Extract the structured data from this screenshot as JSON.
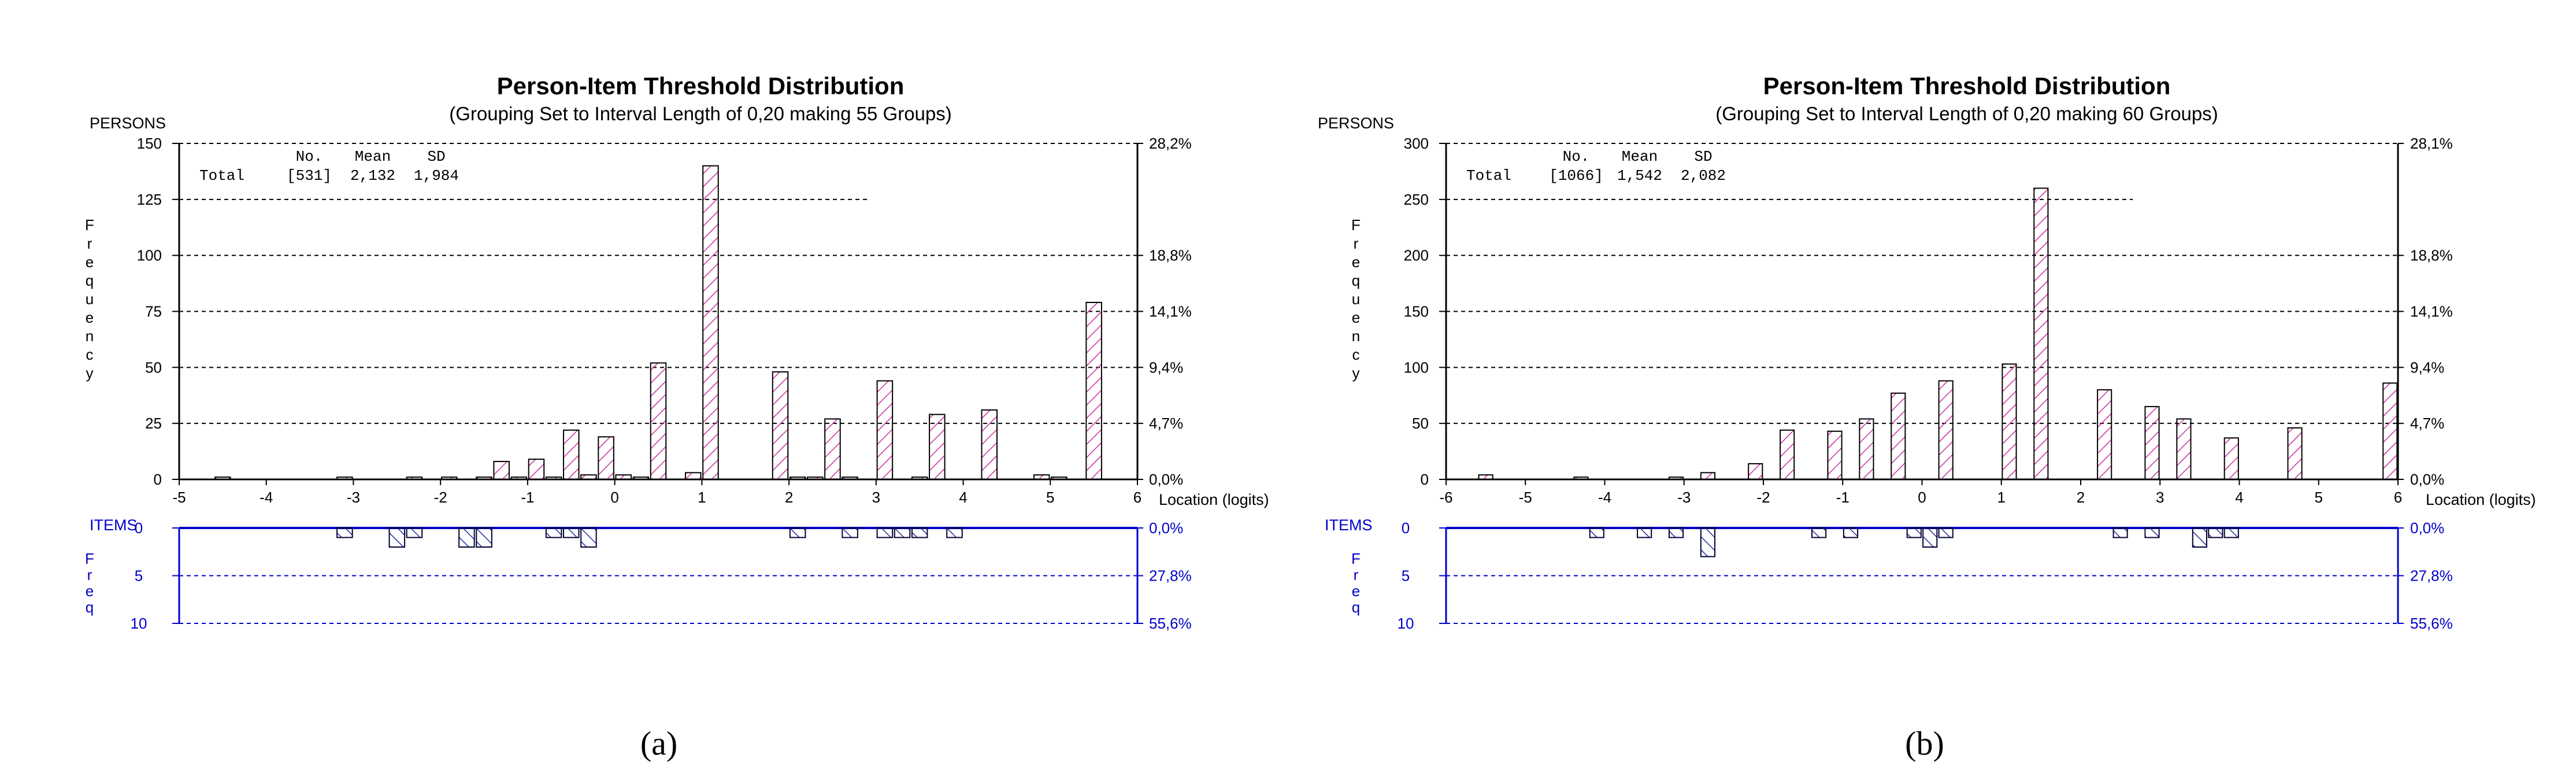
{
  "figure_labels": [
    "(a)",
    "(b)"
  ],
  "style": {
    "person_color": "#cc2f9f",
    "item_color": "#1f2f9f",
    "axis_black": "#000000",
    "axis_blue": "#0000cc"
  },
  "chart_data": [
    {
      "type": "bar",
      "title": "Person-Item Threshold Distribution",
      "subtitle": "(Grouping Set to Interval Length of  0,20  making  55  Groups)",
      "persons_label": "PERSONS",
      "items_label": "ITEMS",
      "freq_label_persons": [
        "F",
        "r",
        "e",
        "q",
        "u",
        "e",
        "n",
        "c",
        "y"
      ],
      "freq_label_items": [
        "F",
        "r",
        "e",
        "q"
      ],
      "xlabel": "Location (logits)",
      "xlim": [
        -5,
        6
      ],
      "x_ticks": [
        "-5",
        "-4",
        "-3",
        "-2",
        "-1",
        "0",
        "1",
        "2",
        "3",
        "4",
        "5",
        "6"
      ],
      "ylim_persons": [
        0,
        150
      ],
      "y_ticks_persons": [
        "0",
        "25",
        "50",
        "75",
        "100",
        "125",
        "150"
      ],
      "right_ticks_persons": [
        "0,0%",
        "4,7%",
        "9,4%",
        "14,1%",
        "18,8%",
        "28,2%"
      ],
      "ylim_items": [
        0,
        10
      ],
      "y_ticks_items": [
        "0",
        "5",
        "10"
      ],
      "right_ticks_items": [
        "0,0%",
        "27,8%",
        "55,6%"
      ],
      "stats": {
        "headers": [
          "No.",
          "Mean",
          "SD"
        ],
        "label": "Total",
        "values": [
          "[531]",
          "2,132",
          "1,984"
        ]
      },
      "persons": {
        "x": [
          -4.5,
          -3.1,
          -2.3,
          -1.9,
          -1.5,
          -1.3,
          -1.1,
          -0.9,
          -0.7,
          -0.5,
          -0.3,
          -0.1,
          0.1,
          0.3,
          0.5,
          0.9,
          1.1,
          1.9,
          2.1,
          2.3,
          2.5,
          2.7,
          3.1,
          3.5,
          3.7,
          4.3,
          4.9,
          5.1,
          5.5
        ],
        "values": [
          1,
          1,
          1,
          1,
          1,
          8,
          1,
          9,
          1,
          22,
          2,
          19,
          2,
          1,
          52,
          3,
          140,
          48,
          1,
          1,
          27,
          1,
          44,
          1,
          29,
          31,
          2,
          1,
          79
        ]
      },
      "items": {
        "x": [
          -3.1,
          -2.5,
          -2.3,
          -1.7,
          -1.5,
          -0.7,
          -0.5,
          -0.3,
          2.1,
          2.7,
          3.1,
          3.3,
          3.5,
          3.9
        ],
        "values": [
          1,
          2,
          1,
          2,
          2,
          1,
          1,
          2,
          1,
          1,
          1,
          1,
          1,
          1
        ]
      }
    },
    {
      "type": "bar",
      "title": "Person-Item Threshold Distribution",
      "subtitle": "(Grouping Set to Interval Length of  0,20  making  60  Groups)",
      "persons_label": "PERSONS",
      "items_label": "ITEMS",
      "freq_label_persons": [
        "F",
        "r",
        "e",
        "q",
        "u",
        "e",
        "n",
        "c",
        "y"
      ],
      "freq_label_items": [
        "F",
        "r",
        "e",
        "q"
      ],
      "xlabel": "Location (logits)",
      "xlim": [
        -6,
        6
      ],
      "x_ticks": [
        "-6",
        "-5",
        "-4",
        "-3",
        "-2",
        "-1",
        "0",
        "1",
        "2",
        "3",
        "4",
        "5",
        "6"
      ],
      "ylim_persons": [
        0,
        300
      ],
      "y_ticks_persons": [
        "0",
        "50",
        "100",
        "150",
        "200",
        "250",
        "300"
      ],
      "right_ticks_persons": [
        "0,0%",
        "4,7%",
        "9,4%",
        "14,1%",
        "18,8%",
        "28,1%"
      ],
      "ylim_items": [
        0,
        10
      ],
      "y_ticks_items": [
        "0",
        "5",
        "10"
      ],
      "right_ticks_items": [
        "0,0%",
        "27,8%",
        "55,6%"
      ],
      "stats": {
        "headers": [
          "No.",
          "Mean",
          "SD"
        ],
        "label": "Total",
        "values": [
          "[1066]",
          "1,542",
          "2,082"
        ]
      },
      "persons": {
        "x": [
          -5.5,
          -4.3,
          -3.1,
          -2.7,
          -2.1,
          -1.7,
          -1.1,
          -0.7,
          -0.3,
          0.3,
          1.1,
          1.5,
          2.3,
          2.9,
          3.3,
          3.9,
          4.7,
          5.9
        ],
        "values": [
          4,
          2,
          2,
          6,
          14,
          44,
          43,
          54,
          77,
          88,
          103,
          260,
          80,
          65,
          54,
          37,
          46,
          86
        ]
      },
      "items": {
        "x": [
          -4.1,
          -3.5,
          -3.1,
          -2.7,
          -1.3,
          -0.9,
          -0.1,
          0.1,
          0.3,
          2.5,
          2.9,
          3.5,
          3.7,
          3.9
        ],
        "values": [
          1,
          1,
          1,
          3,
          1,
          1,
          1,
          2,
          1,
          1,
          1,
          2,
          1,
          1
        ]
      }
    }
  ]
}
